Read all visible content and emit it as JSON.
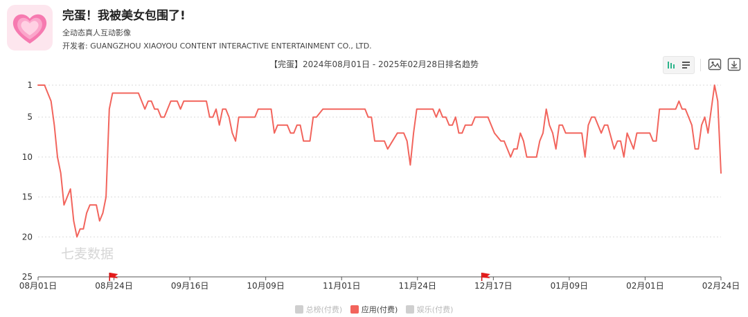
{
  "app": {
    "title": "完蛋！我被美女包围了!",
    "category": "全动态真人互动影像",
    "developer_label": "开发者:",
    "developer": "GUANGZHOU XIAOYOU CONTENT INTERACTIVE ENTERTAINMENT CO., LTD.",
    "icon": "pink-hearts-app-icon"
  },
  "toolbar": {
    "icons": [
      "bar-chart-icon",
      "list-icon",
      "image-export-icon",
      "download-icon"
    ],
    "active_color": "#2bb48a"
  },
  "watermark": "七麦数据",
  "legend": [
    {
      "label": "总榜(付费)",
      "color": "#cfcfcf",
      "active": false
    },
    {
      "label": "应用(付费)",
      "color": "#f2645c",
      "active": true
    },
    {
      "label": "娱乐(付费)",
      "color": "#cfcfcf",
      "active": false
    }
  ],
  "chart_data": {
    "type": "line",
    "title": "【完蛋】2024年08月01日 - 2025年02月28日排名趋势",
    "x_tick_labels": [
      "08月01日",
      "08月24日",
      "09月16日",
      "10月09日",
      "11月01日",
      "11月24日",
      "12月17日",
      "01月09日",
      "02月01日",
      "02月24日"
    ],
    "x_range": [
      "2024-08-01",
      "2025-02-28"
    ],
    "y_tick_labels": [
      "1",
      "5",
      "10",
      "15",
      "20",
      "25"
    ],
    "y_reversed": true,
    "ylim": [
      25,
      1
    ],
    "grid": "horizontal-dashed",
    "line_color": "#f2645c",
    "series": [
      {
        "name": "应用(付费)",
        "points": [
          [
            "2024-08-01",
            1
          ],
          [
            "2024-08-03",
            1
          ],
          [
            "2024-08-05",
            3
          ],
          [
            "2024-08-06",
            6
          ],
          [
            "2024-08-07",
            10
          ],
          [
            "2024-08-08",
            12
          ],
          [
            "2024-08-09",
            16
          ],
          [
            "2024-08-11",
            14
          ],
          [
            "2024-08-12",
            18
          ],
          [
            "2024-08-13",
            20
          ],
          [
            "2024-08-14",
            19
          ],
          [
            "2024-08-15",
            19
          ],
          [
            "2024-08-16",
            17
          ],
          [
            "2024-08-17",
            16
          ],
          [
            "2024-08-19",
            16
          ],
          [
            "2024-08-20",
            18
          ],
          [
            "2024-08-21",
            17
          ],
          [
            "2024-08-22",
            15
          ],
          [
            "2024-08-23",
            4
          ],
          [
            "2024-08-24",
            2
          ],
          [
            "2024-09-01",
            2
          ],
          [
            "2024-09-03",
            4
          ],
          [
            "2024-09-04",
            3
          ],
          [
            "2024-09-05",
            3
          ],
          [
            "2024-09-06",
            4
          ],
          [
            "2024-09-07",
            4
          ],
          [
            "2024-09-08",
            5
          ],
          [
            "2024-09-09",
            5
          ],
          [
            "2024-09-11",
            3
          ],
          [
            "2024-09-13",
            3
          ],
          [
            "2024-09-14",
            4
          ],
          [
            "2024-09-15",
            3
          ],
          [
            "2024-09-22",
            3
          ],
          [
            "2024-09-23",
            5
          ],
          [
            "2024-09-24",
            5
          ],
          [
            "2024-09-25",
            4
          ],
          [
            "2024-09-26",
            6
          ],
          [
            "2024-09-27",
            4
          ],
          [
            "2024-09-28",
            4
          ],
          [
            "2024-09-29",
            5
          ],
          [
            "2024-09-30",
            7
          ],
          [
            "2024-10-01",
            8
          ],
          [
            "2024-10-02",
            5
          ],
          [
            "2024-10-07",
            5
          ],
          [
            "2024-10-08",
            4
          ],
          [
            "2024-10-12",
            4
          ],
          [
            "2024-10-13",
            7
          ],
          [
            "2024-10-14",
            6
          ],
          [
            "2024-10-17",
            6
          ],
          [
            "2024-10-18",
            7
          ],
          [
            "2024-10-19",
            7
          ],
          [
            "2024-10-20",
            6
          ],
          [
            "2024-10-21",
            6
          ],
          [
            "2024-10-22",
            8
          ],
          [
            "2024-10-24",
            8
          ],
          [
            "2024-10-25",
            5
          ],
          [
            "2024-10-26",
            5
          ],
          [
            "2024-10-28",
            4
          ],
          [
            "2024-11-10",
            4
          ],
          [
            "2024-11-11",
            5
          ],
          [
            "2024-11-12",
            5
          ],
          [
            "2024-11-13",
            8
          ],
          [
            "2024-11-16",
            8
          ],
          [
            "2024-11-17",
            9
          ],
          [
            "2024-11-20",
            7
          ],
          [
            "2024-11-22",
            7
          ],
          [
            "2024-11-23",
            8
          ],
          [
            "2024-11-24",
            11
          ],
          [
            "2024-11-25",
            7
          ],
          [
            "2024-11-26",
            4
          ],
          [
            "2024-12-01",
            4
          ],
          [
            "2024-12-02",
            5
          ],
          [
            "2024-12-03",
            4
          ],
          [
            "2024-12-04",
            5
          ],
          [
            "2024-12-05",
            5
          ],
          [
            "2024-12-06",
            6
          ],
          [
            "2024-12-07",
            6
          ],
          [
            "2024-12-08",
            5
          ],
          [
            "2024-12-09",
            7
          ],
          [
            "2024-12-10",
            7
          ],
          [
            "2024-12-11",
            6
          ],
          [
            "2024-12-13",
            6
          ],
          [
            "2024-12-14",
            5
          ],
          [
            "2024-12-18",
            5
          ],
          [
            "2024-12-20",
            7
          ],
          [
            "2024-12-22",
            8
          ],
          [
            "2024-12-23",
            8
          ],
          [
            "2024-12-25",
            10
          ],
          [
            "2024-12-26",
            9
          ],
          [
            "2024-12-27",
            9
          ],
          [
            "2024-12-28",
            7
          ],
          [
            "2024-12-29",
            8
          ],
          [
            "2024-12-30",
            10
          ],
          [
            "2025-01-02",
            10
          ],
          [
            "2025-01-03",
            8
          ],
          [
            "2025-01-04",
            7
          ],
          [
            "2025-01-05",
            4
          ],
          [
            "2025-01-06",
            6
          ],
          [
            "2025-01-07",
            7
          ],
          [
            "2025-01-08",
            9
          ],
          [
            "2025-01-09",
            6
          ],
          [
            "2025-01-10",
            6
          ],
          [
            "2025-01-11",
            7
          ],
          [
            "2025-01-16",
            7
          ],
          [
            "2025-01-17",
            10
          ],
          [
            "2025-01-18",
            6
          ],
          [
            "2025-01-19",
            5
          ],
          [
            "2025-01-20",
            5
          ],
          [
            "2025-01-22",
            7
          ],
          [
            "2025-01-23",
            6
          ],
          [
            "2025-01-24",
            6
          ],
          [
            "2025-01-26",
            9
          ],
          [
            "2025-01-27",
            8
          ],
          [
            "2025-01-28",
            8
          ],
          [
            "2025-01-29",
            10
          ],
          [
            "2025-01-30",
            7
          ],
          [
            "2025-01-31",
            8
          ],
          [
            "2025-02-01",
            9
          ],
          [
            "2025-02-02",
            7
          ],
          [
            "2025-02-06",
            7
          ],
          [
            "2025-02-07",
            8
          ],
          [
            "2025-02-08",
            8
          ],
          [
            "2025-02-09",
            4
          ],
          [
            "2025-02-14",
            4
          ],
          [
            "2025-02-15",
            3
          ],
          [
            "2025-02-16",
            4
          ],
          [
            "2025-02-17",
            4
          ],
          [
            "2025-02-18",
            5
          ],
          [
            "2025-02-19",
            6
          ],
          [
            "2025-02-20",
            9
          ],
          [
            "2025-02-21",
            9
          ],
          [
            "2025-02-22",
            6
          ],
          [
            "2025-02-23",
            5
          ],
          [
            "2025-02-24",
            7
          ],
          [
            "2025-02-25",
            4
          ],
          [
            "2025-02-26",
            1
          ],
          [
            "2025-02-27",
            3
          ],
          [
            "2025-02-28",
            12
          ]
        ]
      }
    ]
  }
}
